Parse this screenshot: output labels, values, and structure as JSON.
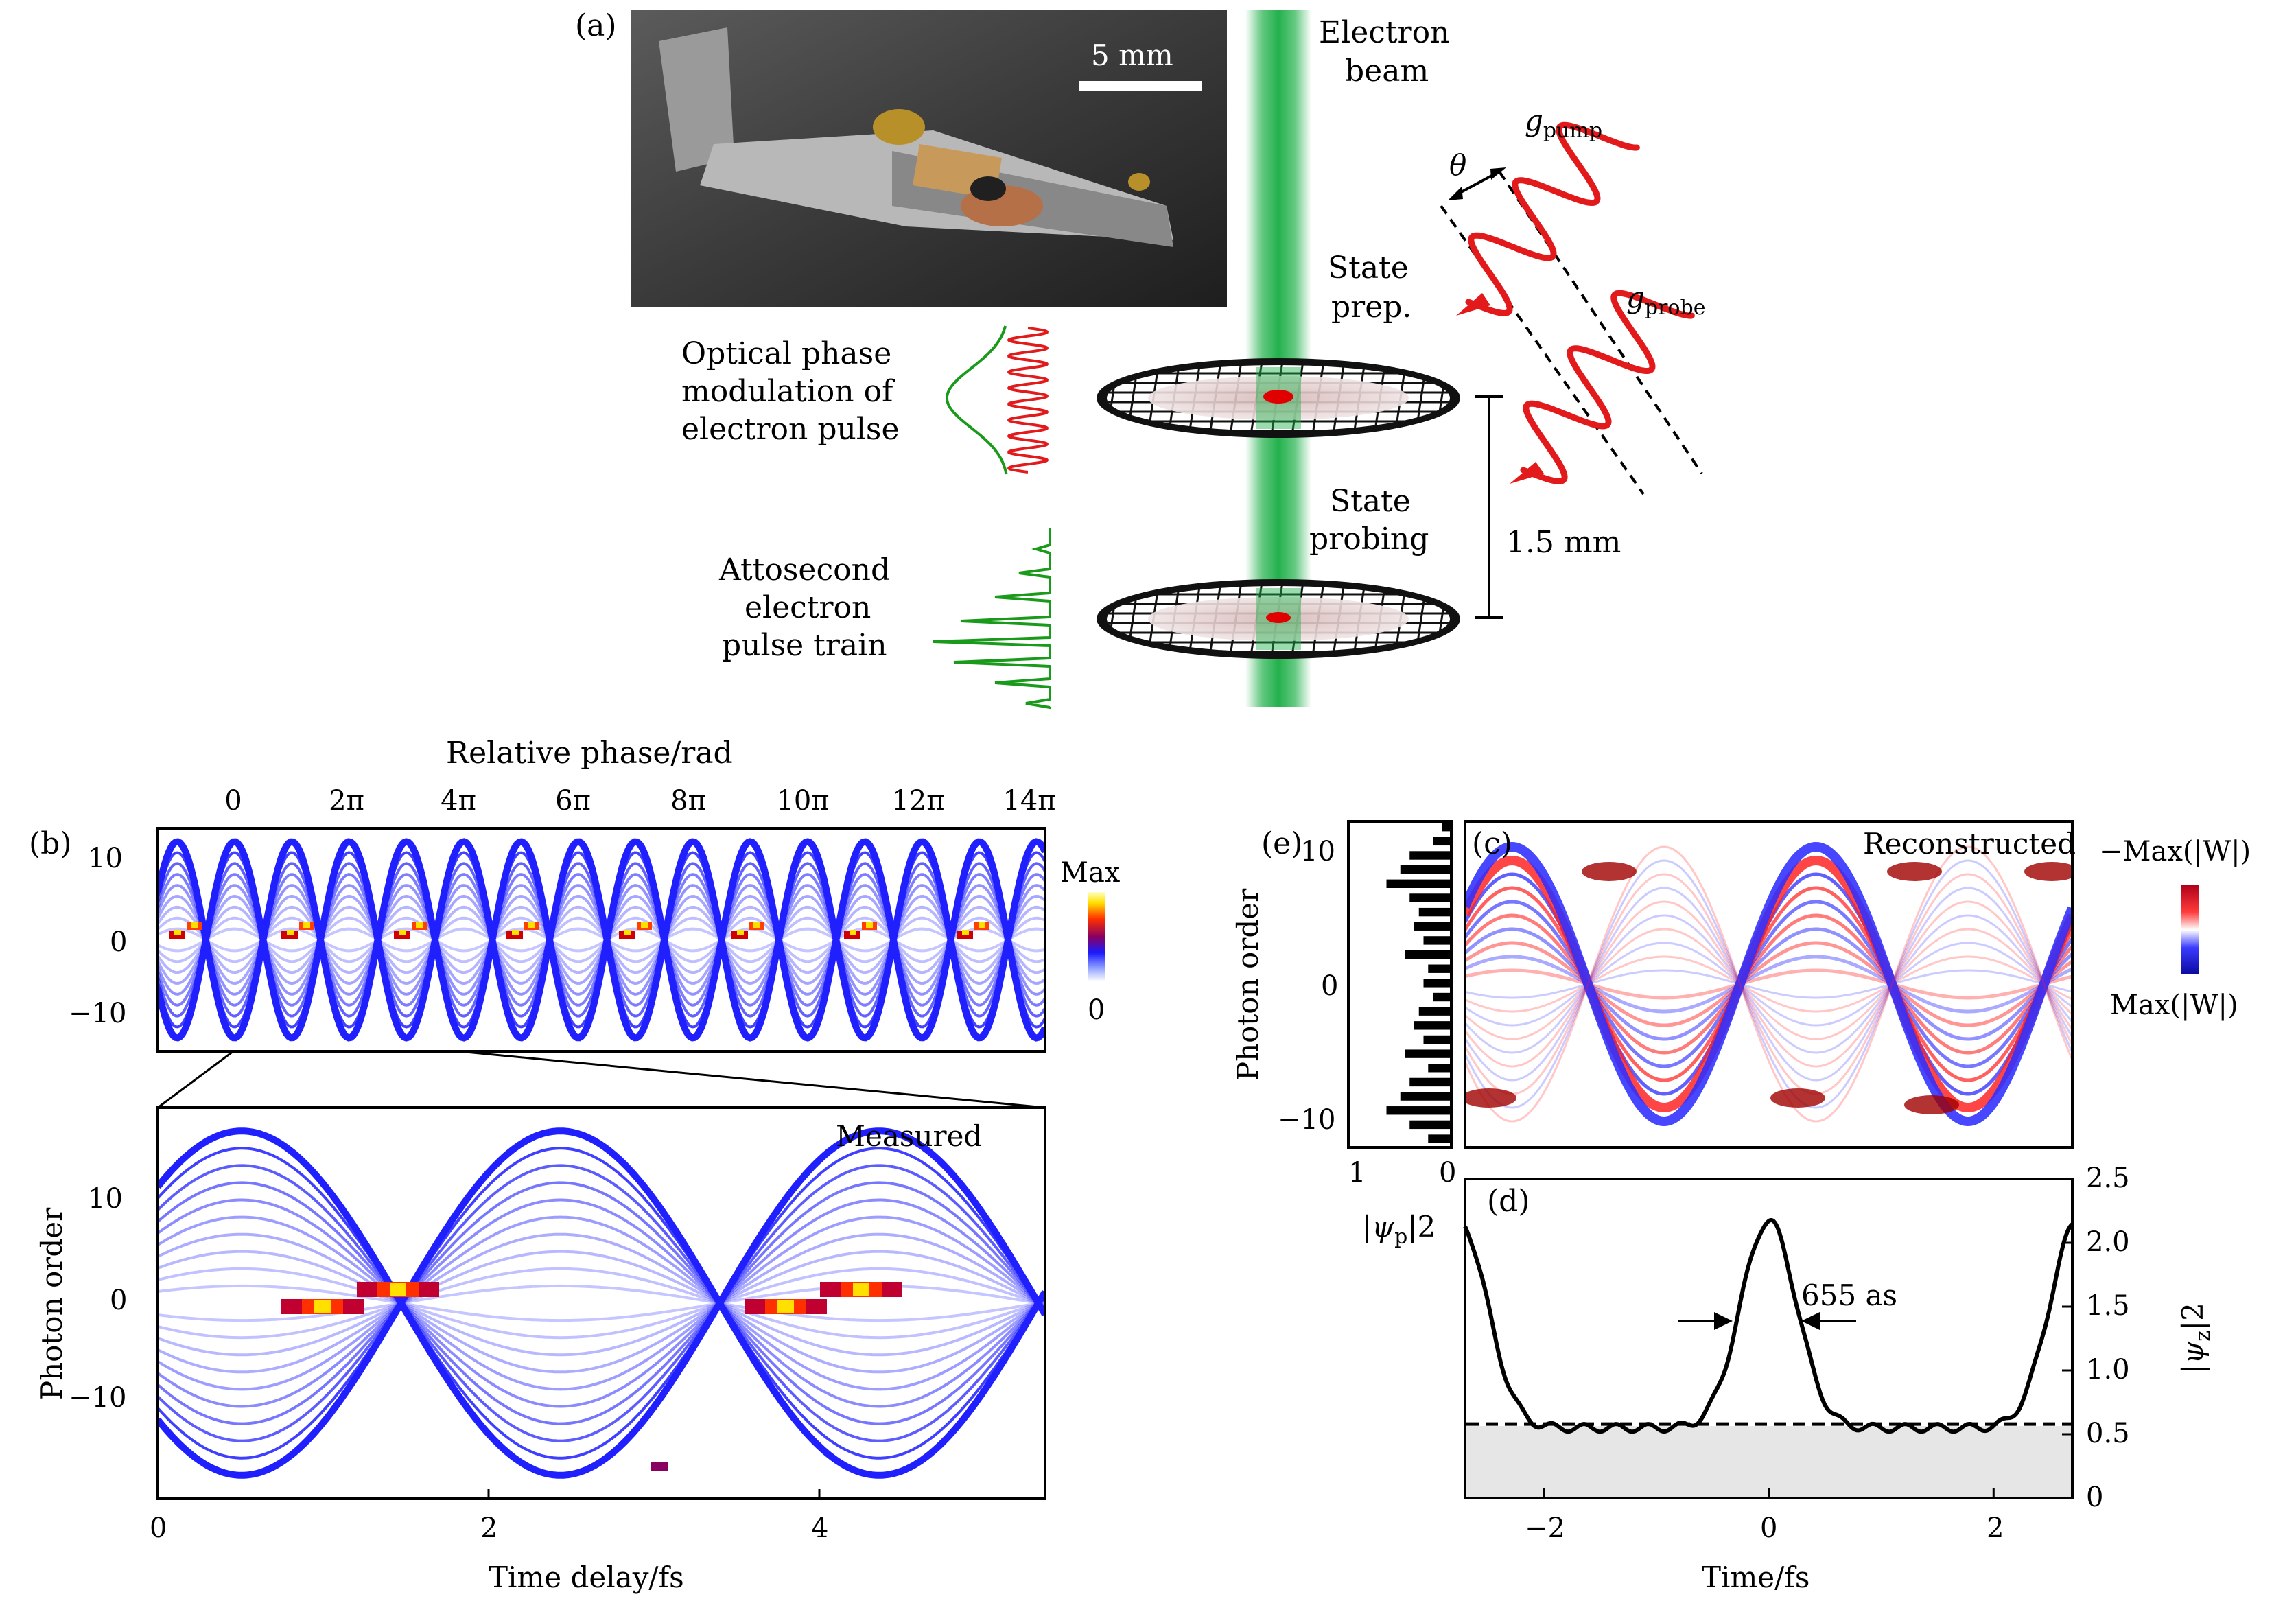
{
  "panel_a": {
    "label": "(a)",
    "scale_bar": "5 mm",
    "electron_beam_line1": "Electron",
    "electron_beam_line2": "beam",
    "g_pump": "g",
    "g_pump_sub": "pump",
    "g_probe": "g",
    "g_probe_sub": "probe",
    "theta": "θ",
    "state_prep_line1": "State",
    "state_prep_line2": "prep.",
    "state_probing_line1": "State",
    "state_probing_line2": "probing",
    "distance": "1.5 mm",
    "optical_line1": "Optical phase",
    "optical_line2": "modulation of",
    "optical_line3": "electron pulse",
    "atto_line1": "Attosecond",
    "atto_line2": "electron",
    "atto_line3": "pulse train",
    "colors": {
      "beam": "#22b14c",
      "laser": "#e31a1c",
      "pulse": "#1a9a1a"
    }
  },
  "panel_b": {
    "label": "(b)",
    "top_axis_title": "Relative phase/rad",
    "top_ticks": [
      "0",
      "2π",
      "4π",
      "6π",
      "8π",
      "10π",
      "12π",
      "14π"
    ],
    "y_ticks_top": [
      "10",
      "0",
      "−10"
    ],
    "colorbar_max": "Max",
    "colorbar_min": "0",
    "measured_label": "Measured",
    "y_axis_title": "Photon order",
    "y_ticks_bottom": [
      "10",
      "0",
      "−10"
    ],
    "x_ticks": [
      "0",
      "2",
      "4"
    ],
    "x_axis_title": "Time delay/fs"
  },
  "panel_e": {
    "label": "(e)",
    "y_axis_title": "Photon order",
    "y_ticks": [
      "10",
      "0",
      "−10"
    ],
    "x_ticks": [
      "1",
      "0"
    ],
    "x_axis_title": "|ψ",
    "x_axis_title_sub": "p",
    "x_axis_title_sup": "|2"
  },
  "panel_c": {
    "label": "(c)",
    "title": "Reconstructed",
    "colorbar_top": "−Max(|W|)",
    "colorbar_bottom": "Max(|W|)"
  },
  "panel_d": {
    "label": "(d)",
    "fwhm_label": "655 as",
    "x_ticks": [
      "−2",
      "0",
      "2"
    ],
    "x_axis_title": "Time/fs",
    "y_ticks": [
      "2.5",
      "2.0",
      "1.5",
      "1.0",
      "0.5",
      "0"
    ],
    "y_axis_title": "|ψ",
    "y_axis_title_sub": "z",
    "y_axis_title_sup": "|2"
  },
  "chart_data": [
    {
      "type": "heatmap",
      "panel": "b-top",
      "x_label": "Relative phase/rad",
      "y_ticks": [
        10,
        0,
        -10
      ],
      "phase_ticks": [
        "0",
        "2π",
        "4π",
        "6π",
        "8π",
        "10π",
        "12π",
        "14π"
      ]
    },
    {
      "type": "heatmap",
      "panel": "b-bottom",
      "xlabel": "Time delay/fs",
      "ylabel": "Photon order",
      "xlim": [
        0,
        5.35
      ],
      "ylim": [
        -19,
        19
      ]
    },
    {
      "type": "heatmap",
      "panel": "c",
      "title": "Reconstructed",
      "ylim": [
        -11,
        11
      ]
    },
    {
      "type": "bar",
      "panel": "e",
      "ylabel": "Photon order",
      "xlabel": "|ψp|2",
      "xlim": [
        1,
        0
      ]
    },
    {
      "type": "line",
      "panel": "d",
      "xlabel": "Time/fs",
      "ylabel": "|ψz|2",
      "xlim": [
        -2.7,
        2.7
      ],
      "ylim": [
        0,
        2.5
      ],
      "baseline": 0.58,
      "peak": 2.2,
      "annotation": "655 as"
    }
  ]
}
